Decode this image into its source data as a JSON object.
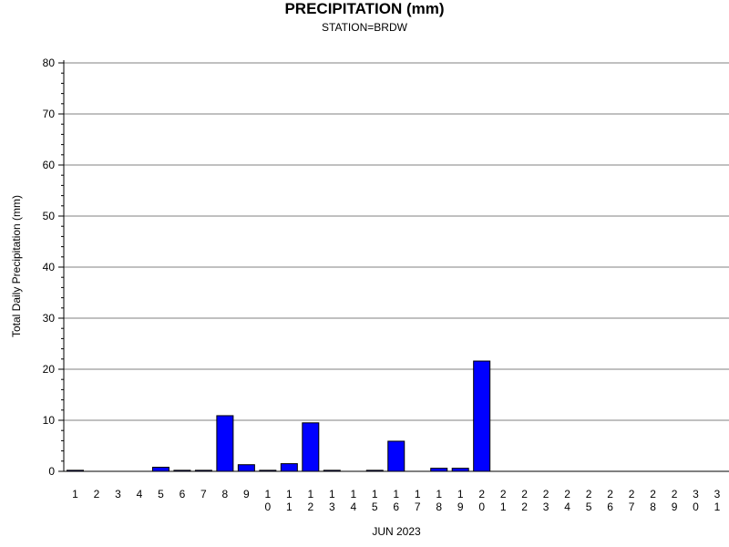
{
  "chart_data": {
    "type": "bar",
    "title": "PRECIPITATION (mm)",
    "subtitle": "STATION=BRDW",
    "xlabel": "JUN 2023",
    "ylabel": "Total Daily Precipitation (mm)",
    "ylim": [
      0,
      80
    ],
    "yticks": [
      0,
      10,
      20,
      30,
      40,
      50,
      60,
      70,
      80
    ],
    "grid": true,
    "bar_color": "#0000ff",
    "categories": [
      "1",
      "2",
      "3",
      "4",
      "5",
      "6",
      "7",
      "8",
      "9",
      "10",
      "11",
      "12",
      "13",
      "14",
      "15",
      "16",
      "17",
      "18",
      "19",
      "20",
      "21",
      "22",
      "23",
      "24",
      "25",
      "26",
      "27",
      "28",
      "29",
      "30",
      "31"
    ],
    "values": [
      0.2,
      null,
      null,
      null,
      0.8,
      0.2,
      0.2,
      10.9,
      1.3,
      0.2,
      1.5,
      9.5,
      0.2,
      null,
      0.2,
      5.9,
      null,
      0.6,
      0.6,
      21.6,
      null,
      null,
      null,
      null,
      null,
      null,
      null,
      null,
      null,
      null,
      null
    ]
  }
}
